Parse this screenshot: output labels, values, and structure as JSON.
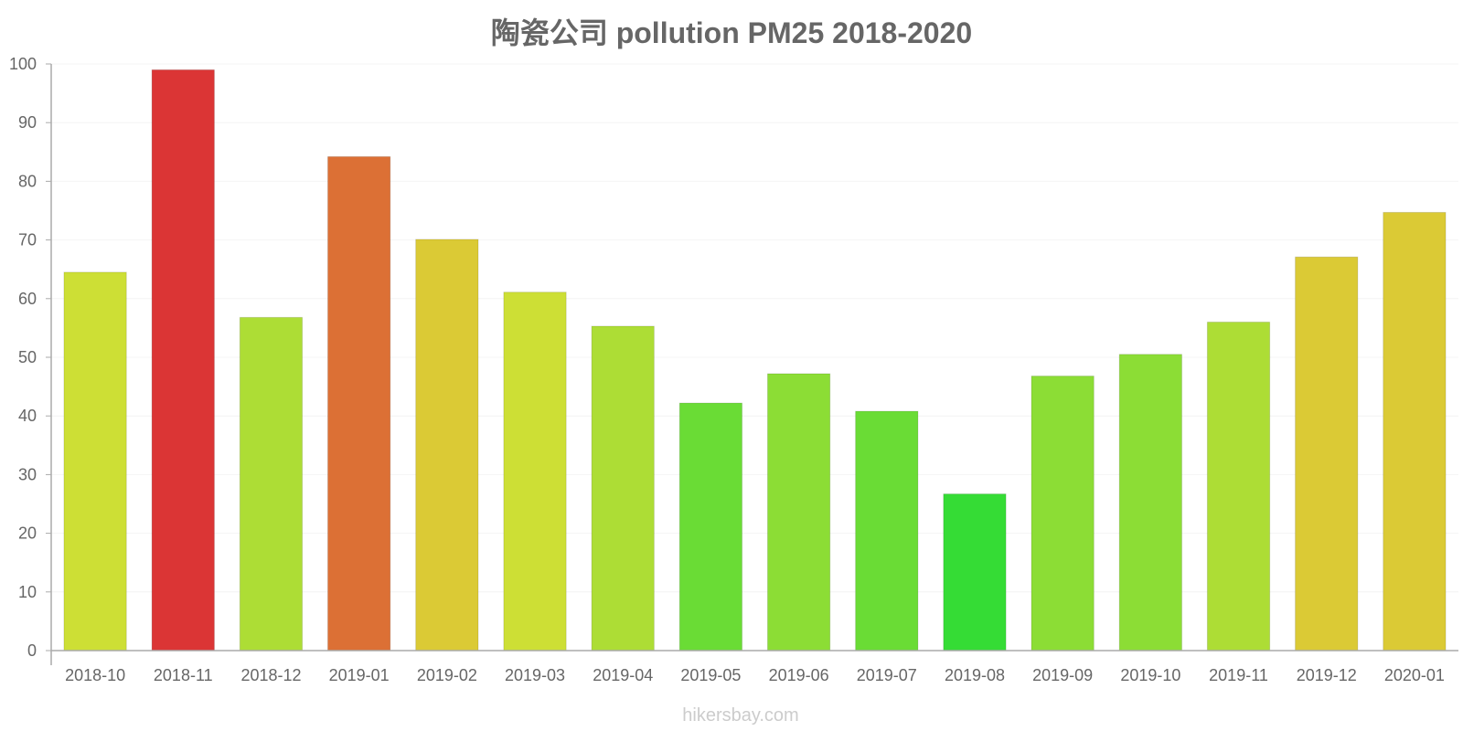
{
  "chart_data": {
    "type": "bar",
    "title": "陶瓷公司 pollution PM25 2018-2020",
    "categories": [
      "2018-10",
      "2018-11",
      "2018-12",
      "2019-01",
      "2019-02",
      "2019-03",
      "2019-04",
      "2019-05",
      "2019-06",
      "2019-07",
      "2019-08",
      "2019-09",
      "2019-10",
      "2019-11",
      "2019-12",
      "2020-01"
    ],
    "values": [
      64.5,
      99,
      56.8,
      84.2,
      70.1,
      61.1,
      55.3,
      42.2,
      47.2,
      40.8,
      26.7,
      46.8,
      50.5,
      56,
      67.1,
      74.7
    ],
    "colors": [
      "#cddf35",
      "#db3535",
      "#addd35",
      "#dc7035",
      "#dbca35",
      "#cddf35",
      "#addd35",
      "#6adc35",
      "#8cdd35",
      "#6adc35",
      "#35dc35",
      "#8cdd35",
      "#8cdd35",
      "#addd35",
      "#dbca35",
      "#dbca35"
    ],
    "yticks": [
      0,
      10,
      20,
      30,
      40,
      50,
      60,
      70,
      80,
      90,
      100
    ],
    "ylim": [
      0,
      100
    ],
    "xlabel": "",
    "ylabel": "",
    "grid": true,
    "legend": "none"
  },
  "credit": "hikersbay.com"
}
